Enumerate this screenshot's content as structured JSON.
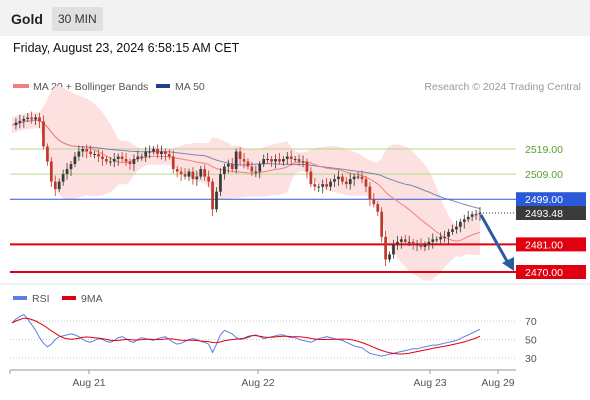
{
  "header": {
    "title": "Gold",
    "timeframe": "30 MIN"
  },
  "datetime": "Friday, August 23, 2024 6:58:15 AM CET",
  "legend": {
    "ma20_label": "MA 20 + Bollinger Bands",
    "ma50_label": "MA 50",
    "source": "Research © 2024 Trading Central"
  },
  "colors": {
    "ma20": "#f08080",
    "bollinger_fill": "#fde0e0",
    "ma50": "#1f3f8f",
    "up_candle": "#3a3a3a",
    "down_candle": "#c0392b",
    "resistance": "#b5d98c",
    "pivot": "#2a5ad7",
    "support": "#e0000f",
    "arrow": "#2a5aa0",
    "rsi": "#5a7fe0",
    "rsi_ma": "#e0000f"
  },
  "chart_data": [
    {
      "type": "candlestick",
      "title": "",
      "xlabel": "",
      "ylabel": "",
      "ylim": [
        2468,
        2528
      ],
      "grid": false,
      "x_ticks": [
        "Aug 21",
        "Aug 22",
        "Aug 23",
        "Aug 29"
      ],
      "indicators": [
        "MA 20 + Bollinger Bands",
        "MA 50"
      ],
      "levels": [
        {
          "value": 2519.0,
          "label": "2519.00",
          "kind": "resistance"
        },
        {
          "value": 2509.0,
          "label": "2509.00",
          "kind": "resistance"
        },
        {
          "value": 2499.0,
          "label": "2499.00",
          "kind": "pivot"
        },
        {
          "value": 2481.0,
          "label": "2481.00",
          "kind": "support"
        },
        {
          "value": 2470.0,
          "label": "2470.00",
          "kind": "support"
        }
      ],
      "last_price": {
        "value": 2493.48,
        "label": "2493.48"
      },
      "close_series": [
        2528.5,
        2529.5,
        2530.2,
        2531,
        2531.5,
        2530.8,
        2531.6,
        2530,
        2520,
        2514,
        2506,
        2503,
        2506,
        2509,
        2511,
        2513,
        2516,
        2518,
        2519,
        2518,
        2517,
        2517,
        2516,
        2515,
        2514,
        2514,
        2515,
        2516,
        2515,
        2514,
        2513,
        2515,
        2516,
        2516,
        2518,
        2518,
        2519,
        2517,
        2518,
        2517,
        2516,
        2511,
        2510,
        2509,
        2508,
        2510,
        2507,
        2508,
        2511,
        2508,
        2506,
        2495,
        2502,
        2509,
        2512,
        2513,
        2511,
        2518,
        2515,
        2514,
        2512,
        2510,
        2510,
        2513,
        2515,
        2515,
        2514,
        2515,
        2514,
        2515,
        2516,
        2515,
        2515,
        2514,
        2514,
        2510,
        2505,
        2504,
        2504,
        2505,
        2504,
        2506,
        2507,
        2508,
        2506,
        2505,
        2507,
        2508,
        2508,
        2507,
        2504,
        2499,
        2497,
        2494,
        2484,
        2475,
        2477,
        2481,
        2482,
        2483,
        2482,
        2482,
        2481,
        2481,
        2480,
        2481,
        2482,
        2483,
        2483,
        2484,
        2484,
        2486,
        2487,
        2488,
        2490,
        2491,
        2492,
        2493,
        2493,
        2493.5
      ],
      "rsi": {
        "name": "RSI",
        "ma_name": "9MA",
        "y_ticks": [
          70,
          50,
          30
        ],
        "ylim": [
          20,
          80
        ],
        "values": [
          68,
          72,
          75,
          77,
          72,
          66,
          60,
          52,
          46,
          42,
          45,
          50,
          53,
          54,
          55,
          56,
          55,
          53,
          50,
          48,
          47,
          49,
          51,
          50,
          48,
          47,
          49,
          52,
          53,
          51,
          48,
          47,
          50,
          52,
          51,
          50,
          49,
          51,
          52,
          53,
          50,
          47,
          45,
          46,
          48,
          50,
          51,
          50,
          48,
          47,
          45,
          36,
          45,
          55,
          60,
          58,
          56,
          52,
          50,
          51,
          52,
          54,
          55,
          53,
          51,
          52,
          53,
          54,
          55,
          55,
          53,
          52,
          52,
          50,
          49,
          48,
          47,
          49,
          51,
          52,
          53,
          52,
          51,
          50,
          49,
          47,
          45,
          43,
          42,
          41,
          38,
          35,
          34,
          33,
          32,
          33,
          34,
          35,
          36,
          37,
          38,
          39,
          40,
          40,
          41,
          42,
          43,
          44,
          44,
          45,
          46,
          47,
          48,
          49,
          51,
          53,
          55,
          57,
          59,
          61
        ]
      }
    }
  ]
}
